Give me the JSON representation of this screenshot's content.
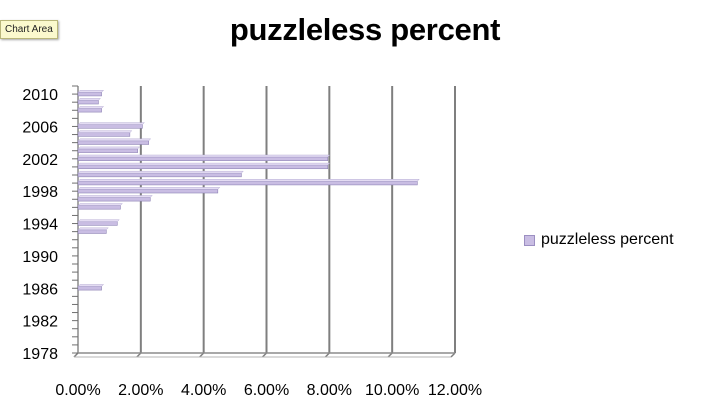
{
  "tooltip": {
    "text": "Chart Area"
  },
  "chart_data": {
    "type": "bar",
    "orientation": "horizontal",
    "title": "puzzleless percent",
    "xlabel": "",
    "ylabel": "",
    "xlim": [
      0,
      0.12
    ],
    "x_ticks": [
      "0.00%",
      "2.00%",
      "4.00%",
      "6.00%",
      "8.00%",
      "10.00%",
      "12.00%"
    ],
    "ylim": [
      1978,
      2011
    ],
    "y_ticks": [
      "1978",
      "1982",
      "1986",
      "1990",
      "1994",
      "1998",
      "2002",
      "2006",
      "2010"
    ],
    "grid": "vertical major gridlines",
    "legend": "right",
    "series": [
      {
        "name": "puzzleless percent",
        "color": "#c9bde3",
        "points": [
          {
            "year": 1978,
            "value": 0.0
          },
          {
            "year": 1979,
            "value": 0.0
          },
          {
            "year": 1980,
            "value": 0.0
          },
          {
            "year": 1981,
            "value": 0.0
          },
          {
            "year": 1982,
            "value": 0.0
          },
          {
            "year": 1983,
            "value": 0.0
          },
          {
            "year": 1984,
            "value": 0.0
          },
          {
            "year": 1985,
            "value": 0.0
          },
          {
            "year": 1986,
            "value": 0.0075
          },
          {
            "year": 1987,
            "value": 0.0
          },
          {
            "year": 1988,
            "value": 0.0
          },
          {
            "year": 1989,
            "value": 0.0
          },
          {
            "year": 1990,
            "value": 0.0
          },
          {
            "year": 1991,
            "value": 0.0
          },
          {
            "year": 1992,
            "value": 0.0
          },
          {
            "year": 1993,
            "value": 0.009
          },
          {
            "year": 1994,
            "value": 0.0125
          },
          {
            "year": 1995,
            "value": 0.0
          },
          {
            "year": 1996,
            "value": 0.0135
          },
          {
            "year": 1997,
            "value": 0.023
          },
          {
            "year": 1998,
            "value": 0.0445
          },
          {
            "year": 1999,
            "value": 0.108
          },
          {
            "year": 2000,
            "value": 0.052
          },
          {
            "year": 2001,
            "value": 0.0795
          },
          {
            "year": 2002,
            "value": 0.0795
          },
          {
            "year": 2003,
            "value": 0.019
          },
          {
            "year": 2004,
            "value": 0.0225
          },
          {
            "year": 2005,
            "value": 0.0165
          },
          {
            "year": 2006,
            "value": 0.0205
          },
          {
            "year": 2007,
            "value": 0.0
          },
          {
            "year": 2008,
            "value": 0.0075
          },
          {
            "year": 2009,
            "value": 0.0065
          },
          {
            "year": 2010,
            "value": 0.0075
          }
        ]
      }
    ]
  }
}
